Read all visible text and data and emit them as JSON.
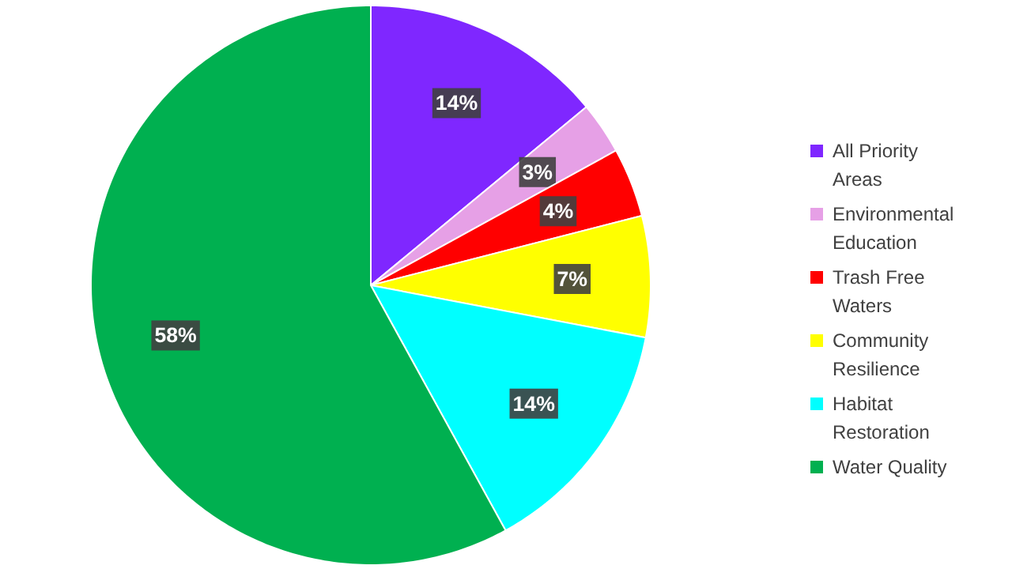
{
  "chart_data": {
    "type": "pie",
    "categories": [
      "All Priority Areas",
      "Environmental Education",
      "Trash Free Waters",
      "Community Resilience",
      "Habitat Restoration",
      "Water Quality"
    ],
    "values": [
      14,
      3,
      4,
      7,
      14,
      58
    ],
    "colors": [
      "#7f27ff",
      "#e6a0e6",
      "#ff0000",
      "#ffff00",
      "#00ffff",
      "#00b050"
    ],
    "value_labels": [
      "14%",
      "3%",
      "4%",
      "7%",
      "14%",
      "58%"
    ],
    "legend": "right"
  }
}
